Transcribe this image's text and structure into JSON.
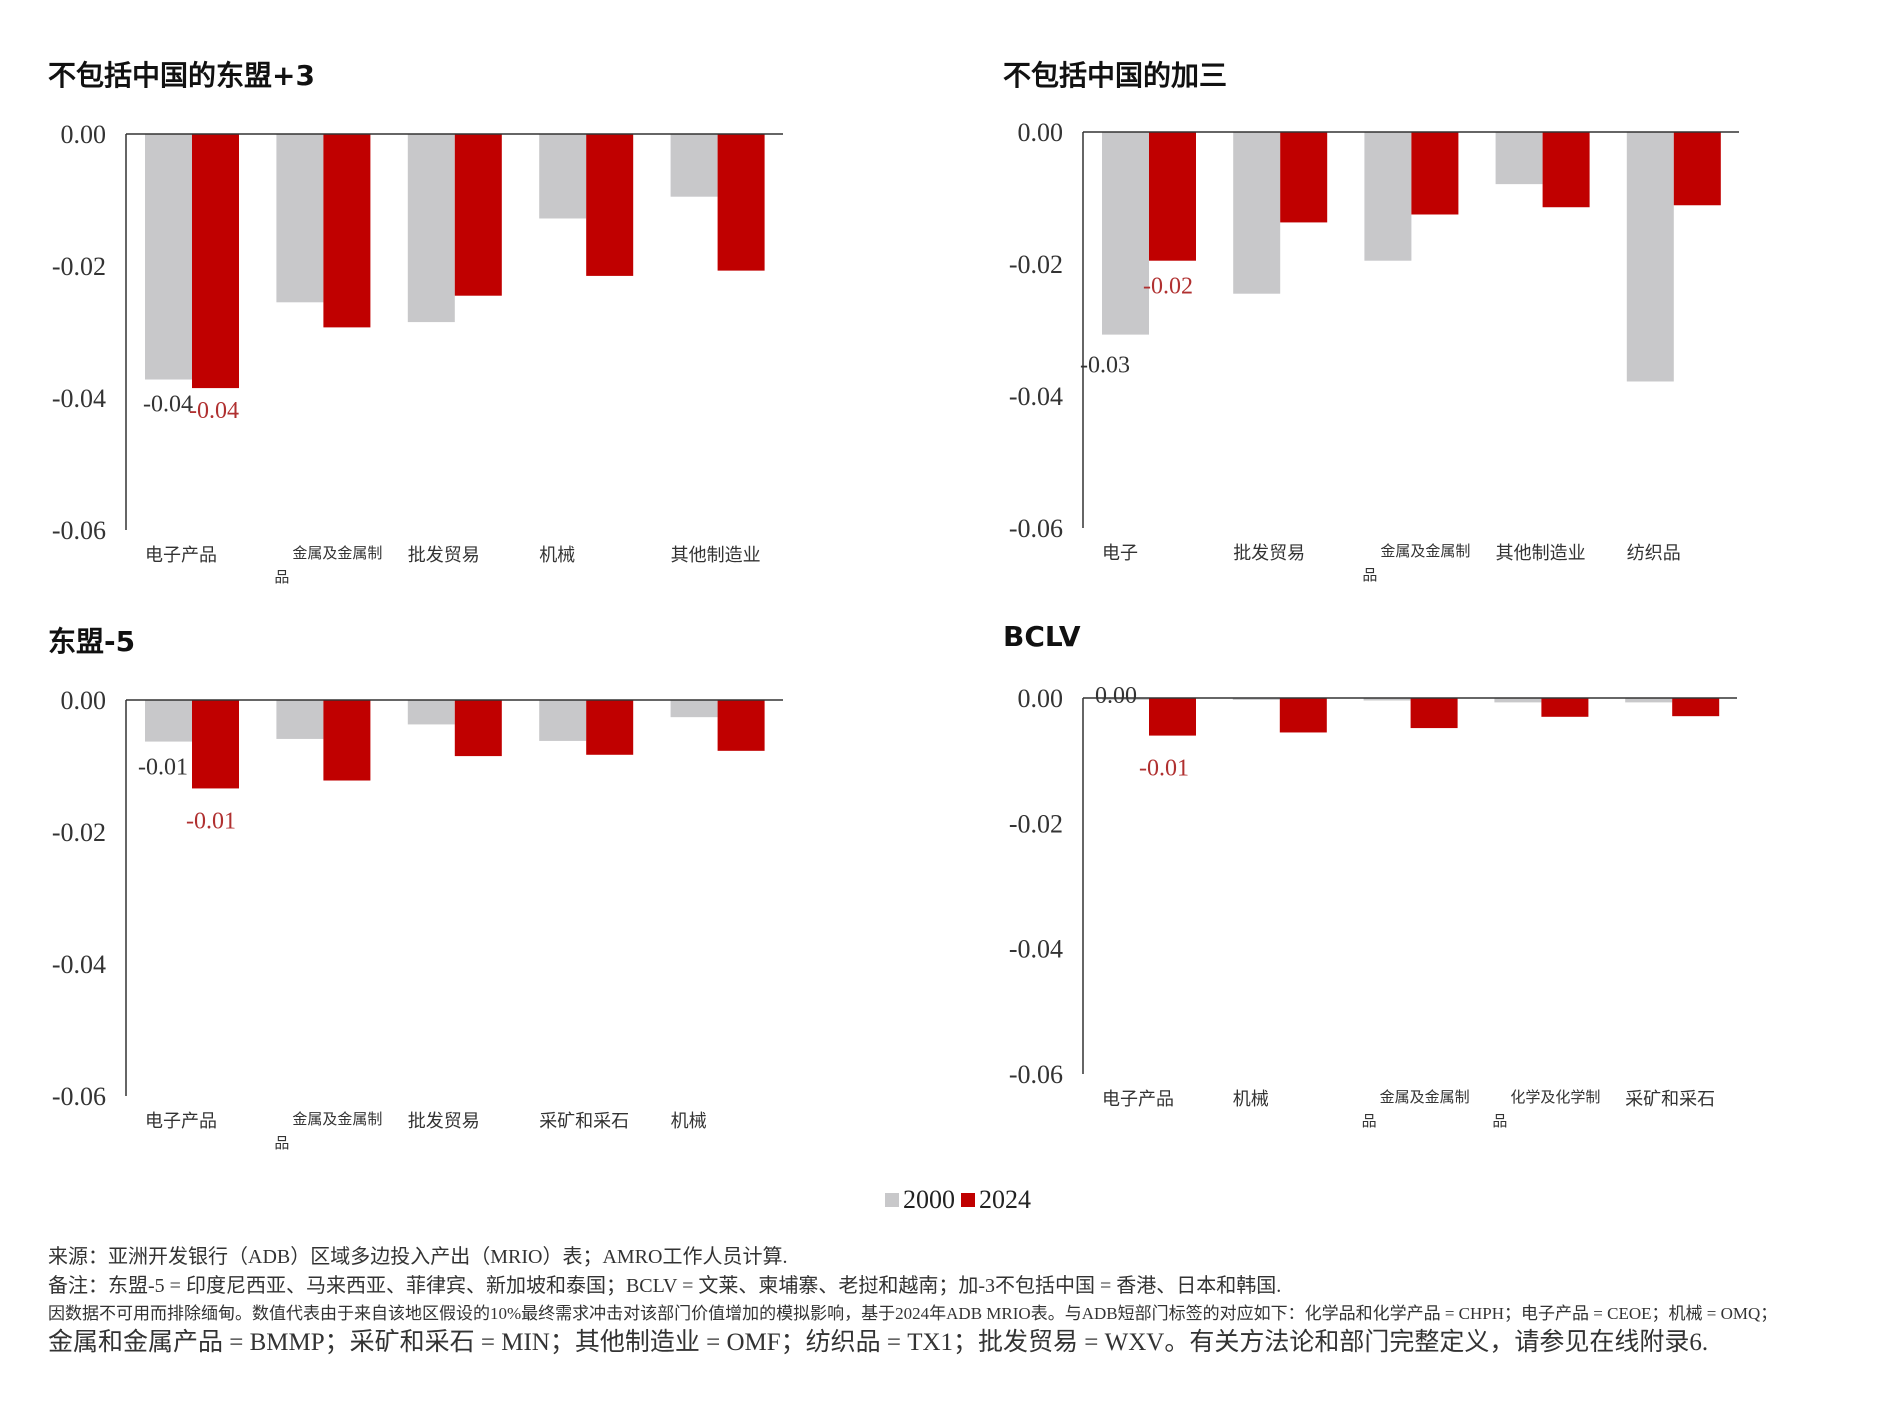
{
  "colors": {
    "s2000": "#c8c8ca",
    "s2024": "#c00000",
    "label2024": "#b03030",
    "axis": "#333333"
  },
  "legend": {
    "s2000": "2000",
    "s2024": "2024"
  },
  "chart_data": [
    {
      "type": "bar",
      "title": "不包括中国的东盟+3",
      "categories": [
        "电子产品",
        "金属及金属制品",
        "批发贸易",
        "机械",
        "其他制造业"
      ],
      "series": [
        {
          "name": "2000",
          "values": [
            -0.0372,
            -0.0255,
            -0.0285,
            -0.0128,
            -0.0095
          ]
        },
        {
          "name": "2024",
          "values": [
            -0.0385,
            -0.0293,
            -0.0245,
            -0.0215,
            -0.0207
          ]
        }
      ],
      "ylim": [
        -0.06,
        0
      ],
      "yticks": [
        "0.00",
        "-0.02",
        "-0.04",
        "-0.06"
      ],
      "data_labels": [
        {
          "series": 0,
          "index": 0,
          "text": "-0.04"
        },
        {
          "series": 1,
          "index": 0,
          "text": "-0.04"
        }
      ]
    },
    {
      "type": "bar",
      "title": "不包括中国的加三",
      "categories": [
        "电子",
        "批发贸易",
        "金属及金属制品",
        "其他制造业",
        "纺织品"
      ],
      "series": [
        {
          "name": "2000",
          "values": [
            -0.0307,
            -0.0245,
            -0.0195,
            -0.0079,
            -0.0378
          ]
        },
        {
          "name": "2024",
          "values": [
            -0.0195,
            -0.0137,
            -0.0125,
            -0.0114,
            -0.0111
          ]
        }
      ],
      "ylim": [
        -0.06,
        0
      ],
      "yticks": [
        "0.00",
        "-0.02",
        "-0.04",
        "-0.06"
      ],
      "data_labels": [
        {
          "series": 0,
          "index": 0,
          "text": "-0.03"
        },
        {
          "series": 1,
          "index": 0,
          "text": "-0.02"
        }
      ]
    },
    {
      "type": "bar",
      "title": "东盟-5",
      "categories": [
        "电子产品",
        "金属及金属制品",
        "批发贸易",
        "采矿和采石",
        "机械"
      ],
      "series": [
        {
          "name": "2000",
          "values": [
            -0.0063,
            -0.0059,
            -0.0037,
            -0.0062,
            -0.0026
          ]
        },
        {
          "name": "2024",
          "values": [
            -0.0134,
            -0.0122,
            -0.0085,
            -0.0083,
            -0.0077
          ]
        }
      ],
      "ylim": [
        -0.06,
        0
      ],
      "yticks": [
        "0.00",
        "-0.02",
        "-0.04",
        "-0.06"
      ],
      "data_labels": [
        {
          "series": 0,
          "index": 0,
          "text": "-0.01"
        },
        {
          "series": 1,
          "index": 0,
          "text": "-0.01"
        }
      ]
    },
    {
      "type": "bar",
      "title": "BCLV",
      "categories": [
        "电子产品",
        "机械",
        "金属及金属制品",
        "化学及化学制品",
        "采矿和采石"
      ],
      "series": [
        {
          "name": "2000",
          "values": [
            -0.0003,
            -0.0003,
            -0.0004,
            -0.0007,
            -0.0007
          ]
        },
        {
          "name": "2024",
          "values": [
            -0.006,
            -0.0055,
            -0.0048,
            -0.003,
            -0.0029
          ]
        }
      ],
      "ylim": [
        -0.06,
        0
      ],
      "yticks": [
        "0.00",
        "-0.02",
        "-0.04",
        "-0.06"
      ],
      "data_labels": [
        {
          "series": 0,
          "index": 0,
          "text": "0.00"
        },
        {
          "series": 1,
          "index": 0,
          "text": "-0.01"
        }
      ]
    }
  ],
  "notes": {
    "source": "来源：亚洲开发银行（ADB）区域多边投入产出（MRIO）表；AMRO工作人员计算.",
    "note": "备注：东盟-5 = 印度尼西亚、马来西亚、菲律宾、新加坡和泰国；BCLV = 文莱、柬埔寨、老挝和越南；加-3不包括中国 = 香港、日本和韩国.",
    "detail": "因数据不可用而排除缅甸。数值代表由于来自该地区假设的10%最终需求冲击对该部门价值增加的模拟影响，基于2024年ADB MRIO表。与ADB短部门标签的对应如下：化学品和化学产品 = CHPH；电子产品 = CEOE；机械 = OMQ；",
    "mapping": "金属和金属产品 = BMMP；采矿和采石 = MIN；其他制造业 = OMF；纺织品 = TX1；批发贸易 = WXV。有关方法论和部门完整定义，请参见在线附录6."
  }
}
